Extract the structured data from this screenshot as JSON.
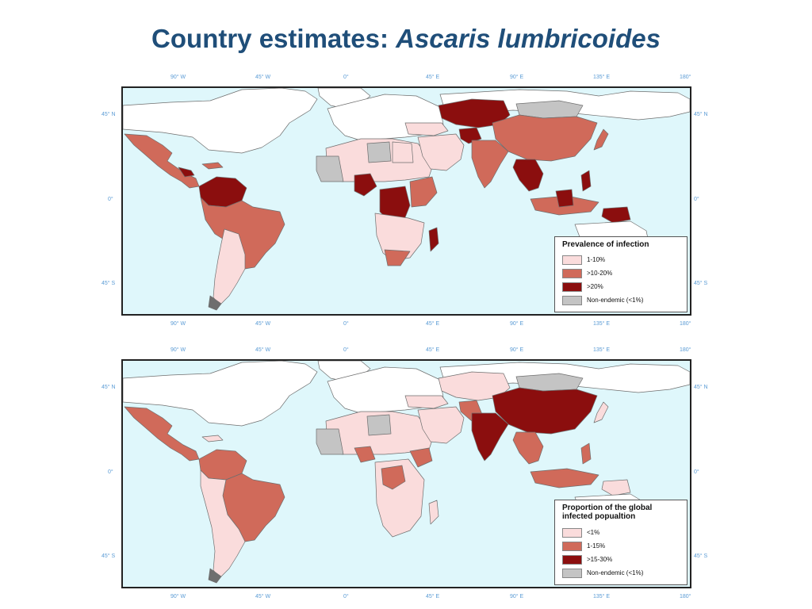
{
  "title": {
    "main": "Country estimates: ",
    "italic": "Ascaris lumbricoides"
  },
  "colors": {
    "ocean": "#dff7fb",
    "land_white": "#ffffff",
    "light": "#fadcdc",
    "medium": "#d06a5a",
    "dark": "#8b0e0e",
    "grey": "#c4c4c4",
    "border": "#6e6e6e",
    "tick_color": "#5a9bd5"
  },
  "axes": {
    "lon_labels": [
      "90° W",
      "45° W",
      "0°",
      "45° E",
      "90° E",
      "135° E",
      "180°"
    ],
    "lat_labels": [
      "45° N",
      "0°",
      "45° S"
    ]
  },
  "maps": [
    {
      "legend": {
        "title": "Prevalence of infection",
        "items": [
          {
            "label": "1-10%",
            "color": "#fadcdc"
          },
          {
            "label": ">10-20%",
            "color": "#d06a5a"
          },
          {
            "label": ">20%",
            "color": "#8b0e0e"
          },
          {
            "label": "Non-endemic (<1%)",
            "color": "#c4c4c4"
          }
        ]
      }
    },
    {
      "legend": {
        "title_line1": "Proportion of the global",
        "title_line2": "infected popualtion",
        "items": [
          {
            "label": "<1%",
            "color": "#fadcdc"
          },
          {
            "label": "1-15%",
            "color": "#d06a5a"
          },
          {
            "label": ">15-30%",
            "color": "#8b0e0e"
          },
          {
            "label": "Non-endemic (<1%)",
            "color": "#c4c4c4"
          }
        ]
      }
    }
  ]
}
